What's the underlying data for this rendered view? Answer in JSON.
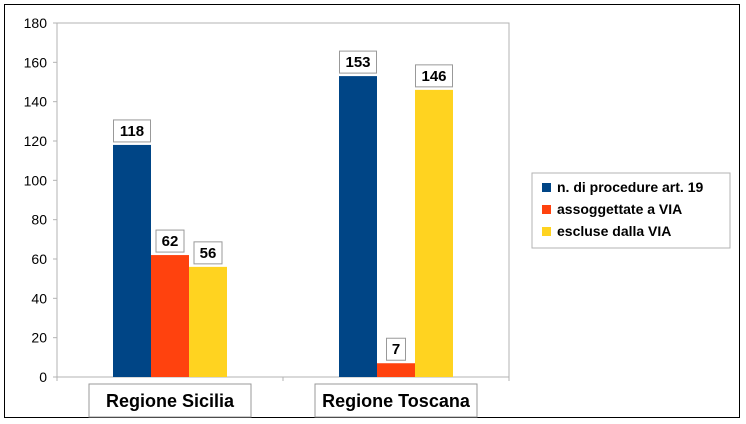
{
  "chart_data": {
    "type": "bar",
    "categories": [
      "Regione Sicilia",
      "Regione Toscana"
    ],
    "series": [
      {
        "name": "n. di procedure art. 19",
        "values": [
          118,
          153
        ],
        "color": "#004586"
      },
      {
        "name": "assoggettate a VIA",
        "values": [
          62,
          7
        ],
        "color": "#ff420e"
      },
      {
        "name": "escluse dalla VIA",
        "values": [
          56,
          146
        ],
        "color": "#ffd320"
      }
    ],
    "ylim": [
      0,
      180
    ],
    "yticks": [
      0,
      20,
      40,
      60,
      80,
      100,
      120,
      140,
      160,
      180
    ],
    "grid": false,
    "legend_position": "right"
  }
}
